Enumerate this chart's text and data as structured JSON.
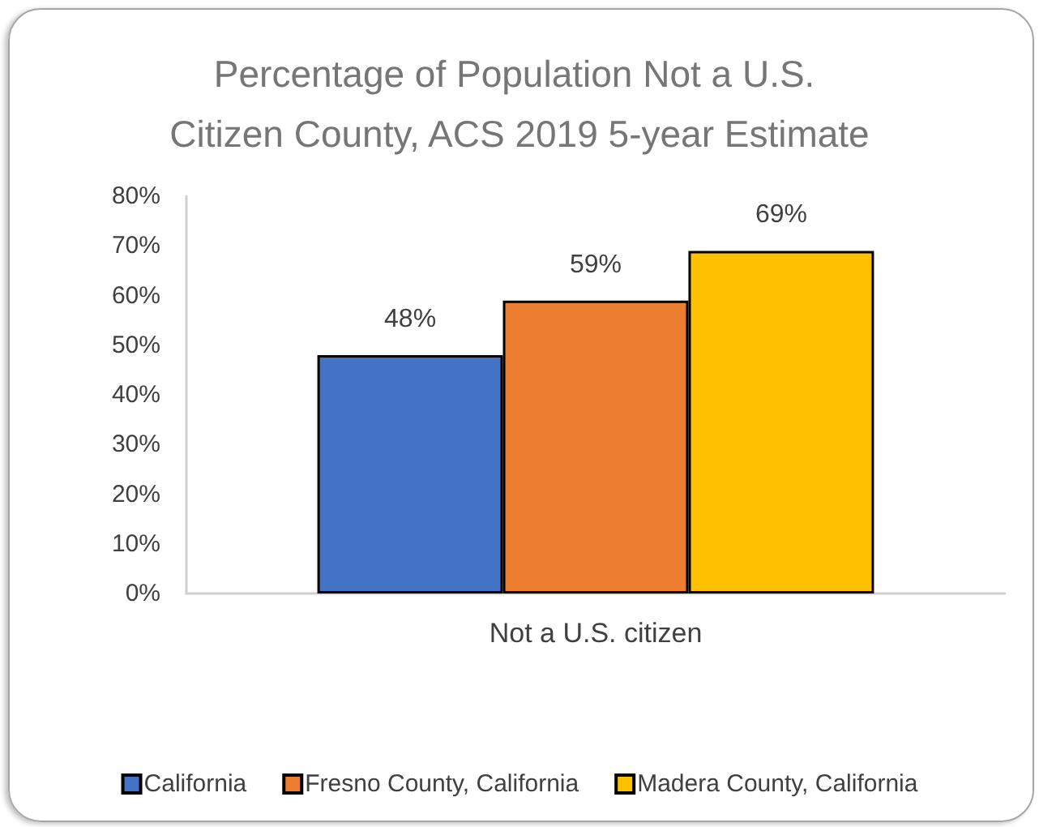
{
  "chart_data": {
    "type": "bar",
    "title": "Percentage of Population Not a U.S. Citizen County, ACS 2019 5-year Estimate",
    "categories": [
      "Not a U.S. citizen"
    ],
    "series": [
      {
        "name": "California",
        "color": "#4472c4",
        "values": [
          48
        ],
        "value_labels": [
          "48%"
        ]
      },
      {
        "name": "Fresno County, California",
        "color": "#ed7d31",
        "values": [
          59
        ],
        "value_labels": [
          "59%"
        ]
      },
      {
        "name": "Madera County, California",
        "color": "#ffc000",
        "values": [
          69
        ],
        "value_labels": [
          "69%"
        ]
      }
    ],
    "ylim": [
      0,
      80
    ],
    "yticks": [
      {
        "value": 0,
        "label": "0%"
      },
      {
        "value": 10,
        "label": "10%"
      },
      {
        "value": 20,
        "label": "20%"
      },
      {
        "value": 30,
        "label": "30%"
      },
      {
        "value": 40,
        "label": "40%"
      },
      {
        "value": 50,
        "label": "50%"
      },
      {
        "value": 60,
        "label": "60%"
      },
      {
        "value": 70,
        "label": "70%"
      },
      {
        "value": 80,
        "label": "80%"
      }
    ],
    "legend": "bottom"
  }
}
